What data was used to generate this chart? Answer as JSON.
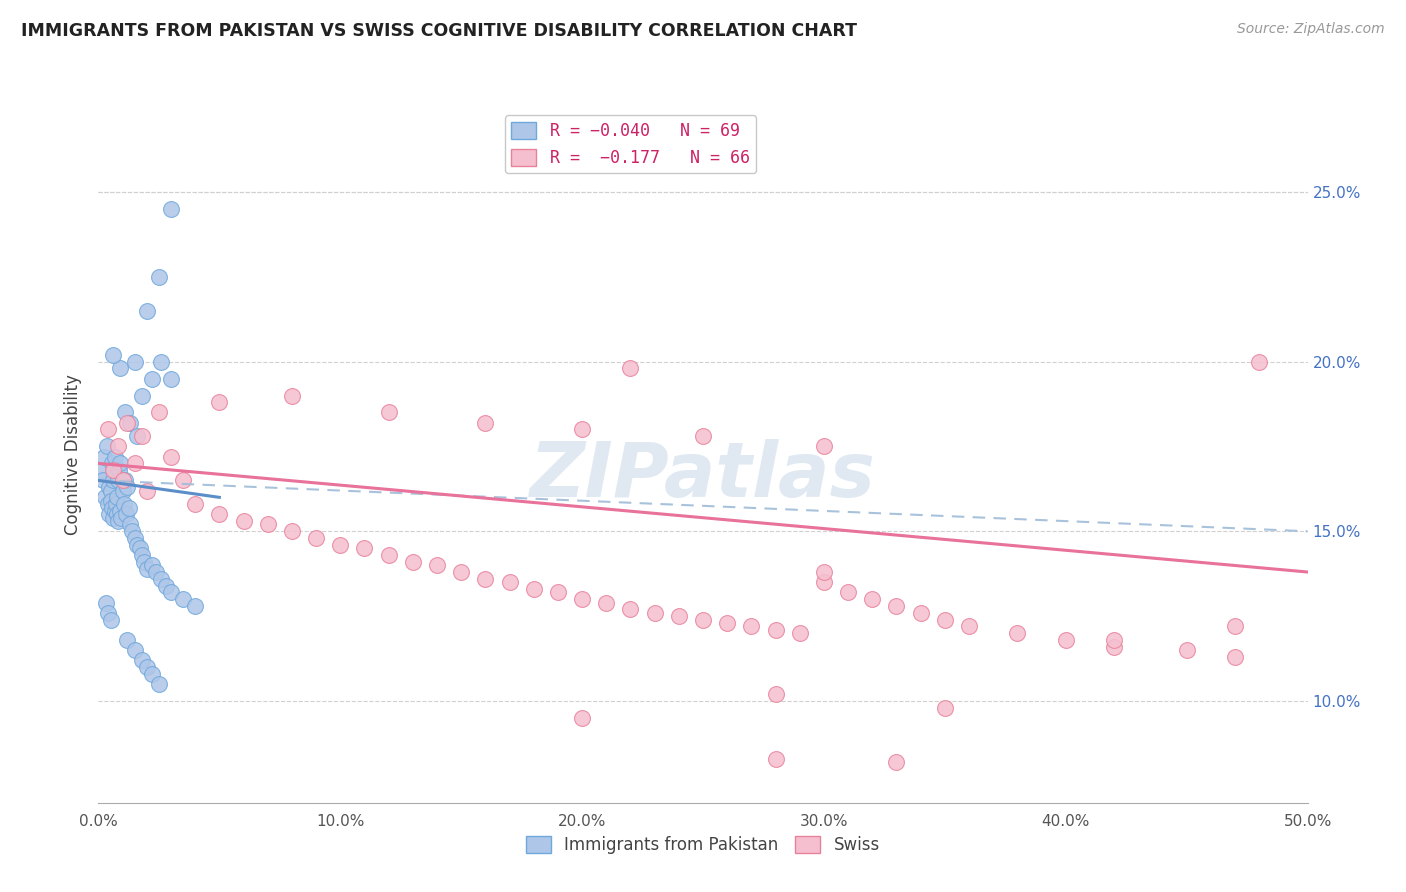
{
  "title": "IMMIGRANTS FROM PAKISTAN VS SWISS COGNITIVE DISABILITY CORRELATION CHART",
  "source": "Source: ZipAtlas.com",
  "ylabel": "Cognitive Disability",
  "xlim": [
    0.0,
    50.0
  ],
  "ylim": [
    7.0,
    27.5
  ],
  "yticks": [
    10.0,
    15.0,
    20.0,
    25.0
  ],
  "xticks": [
    0.0,
    10.0,
    20.0,
    30.0,
    40.0,
    50.0
  ],
  "blue_color": "#aec6e8",
  "pink_color": "#f5bfcf",
  "blue_edge_color": "#6fa8dc",
  "pink_edge_color": "#e8829a",
  "blue_line_color": "#5b8ec9",
  "pink_line_color": "#e8729a",
  "dash_line_color": "#a0bcd8",
  "watermark": "ZIPatlas",
  "background_color": "#ffffff",
  "grid_color": "#d0d0d0",
  "right_tick_color": "#4472c4",
  "title_color": "#222222",
  "source_color": "#999999",
  "blue_scatter_x": [
    0.15,
    0.18,
    0.22,
    0.28,
    0.35,
    0.38,
    0.42,
    0.45,
    0.5,
    0.52,
    0.55,
    0.58,
    0.6,
    0.62,
    0.65,
    0.68,
    0.7,
    0.72,
    0.75,
    0.78,
    0.8,
    0.82,
    0.85,
    0.88,
    0.9,
    0.95,
    1.0,
    1.05,
    1.1,
    1.15,
    1.2,
    1.25,
    1.3,
    1.4,
    1.5,
    1.6,
    1.7,
    1.8,
    1.9,
    2.0,
    2.2,
    2.4,
    2.6,
    2.8,
    3.0,
    3.5,
    4.0,
    0.3,
    0.4,
    0.5,
    1.2,
    1.5,
    1.8,
    2.0,
    2.2,
    2.5,
    1.8,
    2.2,
    2.6,
    3.0,
    2.0,
    2.5,
    3.0,
    1.5,
    0.9,
    0.6,
    1.1,
    1.3,
    1.6
  ],
  "blue_scatter_y": [
    16.8,
    16.5,
    17.2,
    16.0,
    17.5,
    15.8,
    16.3,
    15.5,
    16.2,
    15.9,
    17.0,
    15.7,
    16.5,
    15.4,
    16.8,
    15.6,
    17.2,
    15.8,
    16.0,
    15.5,
    16.5,
    15.3,
    16.8,
    15.6,
    17.0,
    15.4,
    16.2,
    15.8,
    16.5,
    15.5,
    16.3,
    15.7,
    15.2,
    15.0,
    14.8,
    14.6,
    14.5,
    14.3,
    14.1,
    13.9,
    14.0,
    13.8,
    13.6,
    13.4,
    13.2,
    13.0,
    12.8,
    12.9,
    12.6,
    12.4,
    11.8,
    11.5,
    11.2,
    11.0,
    10.8,
    10.5,
    19.0,
    19.5,
    20.0,
    19.5,
    21.5,
    22.5,
    24.5,
    20.0,
    19.8,
    20.2,
    18.5,
    18.2,
    17.8
  ],
  "pink_scatter_x": [
    0.4,
    0.8,
    1.2,
    1.8,
    2.5,
    3.0,
    0.6,
    1.0,
    1.5,
    2.0,
    3.5,
    4.0,
    5.0,
    6.0,
    7.0,
    8.0,
    9.0,
    10.0,
    11.0,
    12.0,
    13.0,
    14.0,
    15.0,
    16.0,
    17.0,
    18.0,
    19.0,
    20.0,
    21.0,
    22.0,
    23.0,
    24.0,
    25.0,
    26.0,
    27.0,
    28.0,
    29.0,
    30.0,
    31.0,
    32.0,
    33.0,
    34.0,
    35.0,
    36.0,
    38.0,
    40.0,
    42.0,
    45.0,
    47.0,
    5.0,
    8.0,
    12.0,
    16.0,
    20.0,
    25.0,
    30.0,
    22.0,
    28.0,
    35.0,
    30.0,
    20.0,
    28.0,
    33.0,
    42.0,
    47.0,
    48.0
  ],
  "pink_scatter_y": [
    18.0,
    17.5,
    18.2,
    17.8,
    18.5,
    17.2,
    16.8,
    16.5,
    17.0,
    16.2,
    16.5,
    15.8,
    15.5,
    15.3,
    15.2,
    15.0,
    14.8,
    14.6,
    14.5,
    14.3,
    14.1,
    14.0,
    13.8,
    13.6,
    13.5,
    13.3,
    13.2,
    13.0,
    12.9,
    12.7,
    12.6,
    12.5,
    12.4,
    12.3,
    12.2,
    12.1,
    12.0,
    13.5,
    13.2,
    13.0,
    12.8,
    12.6,
    12.4,
    12.2,
    12.0,
    11.8,
    11.6,
    11.5,
    11.3,
    18.8,
    19.0,
    18.5,
    18.2,
    18.0,
    17.8,
    17.5,
    19.8,
    10.2,
    9.8,
    13.8,
    9.5,
    8.3,
    8.2,
    11.8,
    12.2,
    20.0
  ],
  "blue_line_x0": 0.0,
  "blue_line_x1": 5.0,
  "blue_line_y0": 16.5,
  "blue_line_y1": 16.0,
  "pink_line_x0": 0.0,
  "pink_line_x1": 50.0,
  "pink_line_y0": 17.0,
  "pink_line_y1": 13.8,
  "dash_line_x0": 0.0,
  "dash_line_x1": 50.0,
  "dash_line_y0": 16.5,
  "dash_line_y1": 15.0
}
